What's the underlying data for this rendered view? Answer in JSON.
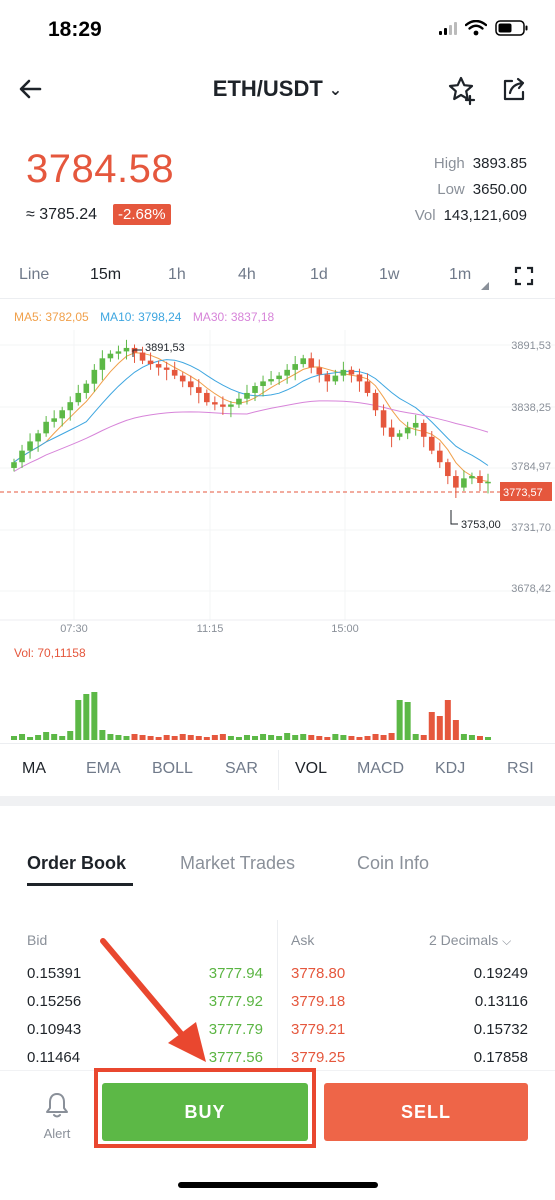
{
  "status": {
    "time": "18:29"
  },
  "header": {
    "pair": "ETH/USDT"
  },
  "price": {
    "last": "3784.58",
    "approx": "≈ 3785.24",
    "change": "-2.68%"
  },
  "stats": [
    {
      "label": "High",
      "value": "3893.85"
    },
    {
      "label": "Low",
      "value": "3650.00"
    },
    {
      "label": "Vol",
      "value": "143,121,609"
    }
  ],
  "intervals": [
    "Line",
    "15m",
    "1h",
    "4h",
    "1d",
    "1w",
    "1m"
  ],
  "active_interval": "15m",
  "ma_legend": {
    "ma5": "MA5: 3782,05",
    "ma10": "MA10: 3798,24",
    "ma30": "MA30: 3837,18"
  },
  "vol_legend": "Vol: 70,11158",
  "chart_data": {
    "type": "candlestick",
    "y_ticks": [
      "3891,53",
      "3838,25",
      "3784,97",
      "3731,70",
      "3678,42"
    ],
    "x_ticks": [
      "07:30",
      "11:15",
      "15:00"
    ],
    "current_price_label": "3773,57",
    "high_label": "3891,53",
    "low_label": "3753,00",
    "ylim": [
      3678.42,
      3891.53
    ]
  },
  "indicators": [
    "MA",
    "EMA",
    "BOLL",
    "SAR",
    "VOL",
    "MACD",
    "KDJ",
    "RSI"
  ],
  "order_tabs": [
    "Order Book",
    "Market Trades",
    "Coin Info"
  ],
  "order_book": {
    "bid_header": "Bid",
    "ask_header": "Ask",
    "decimals": "2 Decimals",
    "rows": [
      {
        "bid_qty": "0.15391",
        "bid_price": "3777.94",
        "ask_price": "3778.80",
        "ask_qty": "0.19249"
      },
      {
        "bid_qty": "0.15256",
        "bid_price": "3777.92",
        "ask_price": "3779.18",
        "ask_qty": "0.13116"
      },
      {
        "bid_qty": "0.10943",
        "bid_price": "3777.79",
        "ask_price": "3779.21",
        "ask_qty": "0.15732"
      },
      {
        "bid_qty": "0.11464",
        "bid_price": "3777.56",
        "ask_price": "3779.25",
        "ask_qty": "0.17858"
      }
    ]
  },
  "bottom": {
    "alert": "Alert",
    "buy": "BUY",
    "sell": "SELL"
  },
  "colors": {
    "up": "#5cb846",
    "down": "#e5573d",
    "ma5": "#f0a04b",
    "ma10": "#3ea6e0",
    "ma30": "#d784d9",
    "highlight": "#e9472f"
  }
}
